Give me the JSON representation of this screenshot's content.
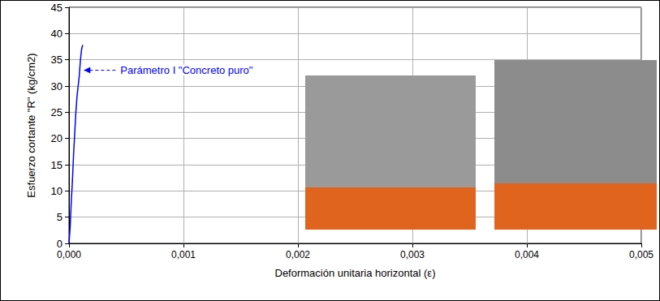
{
  "chart_data": {
    "type": "line",
    "x_label": "Deformación unitaria horizontal (ε)",
    "y_label": "Esfuerzo cortante \"R\" (kg/cm2)",
    "series": [
      {
        "name": "Parámetro I \"Concreto puro\"",
        "color": "#0000ff",
        "x": [
          0,
          1e-05,
          2e-05,
          3e-05,
          4e-05,
          5e-05,
          6e-05,
          7e-05,
          8e-05,
          9e-05,
          0.0001,
          0.00011,
          0.00012
        ],
        "values": [
          0,
          3,
          8,
          12,
          17,
          21,
          25,
          28,
          30,
          32,
          35,
          37,
          37.8
        ]
      }
    ],
    "annotations": [
      {
        "text": "Parámetro I \"Concreto puro\"",
        "x": 0.00013,
        "y": 33,
        "color": "#0000ff"
      }
    ],
    "xlim": [
      0,
      0.005
    ],
    "xticks": [
      {
        "value": 0,
        "label": "0,000"
      },
      {
        "value": 0.001,
        "label": "0,001"
      },
      {
        "value": 0.002,
        "label": "0,002"
      },
      {
        "value": 0.003,
        "label": "0,003"
      },
      {
        "value": 0.004,
        "label": "0,004"
      },
      {
        "value": 0.005,
        "label": "0,005"
      }
    ],
    "ylim": [
      0,
      45
    ],
    "yticks": [
      0,
      5,
      10,
      15,
      20,
      25,
      30,
      35,
      40,
      45
    ],
    "grid": true
  }
}
